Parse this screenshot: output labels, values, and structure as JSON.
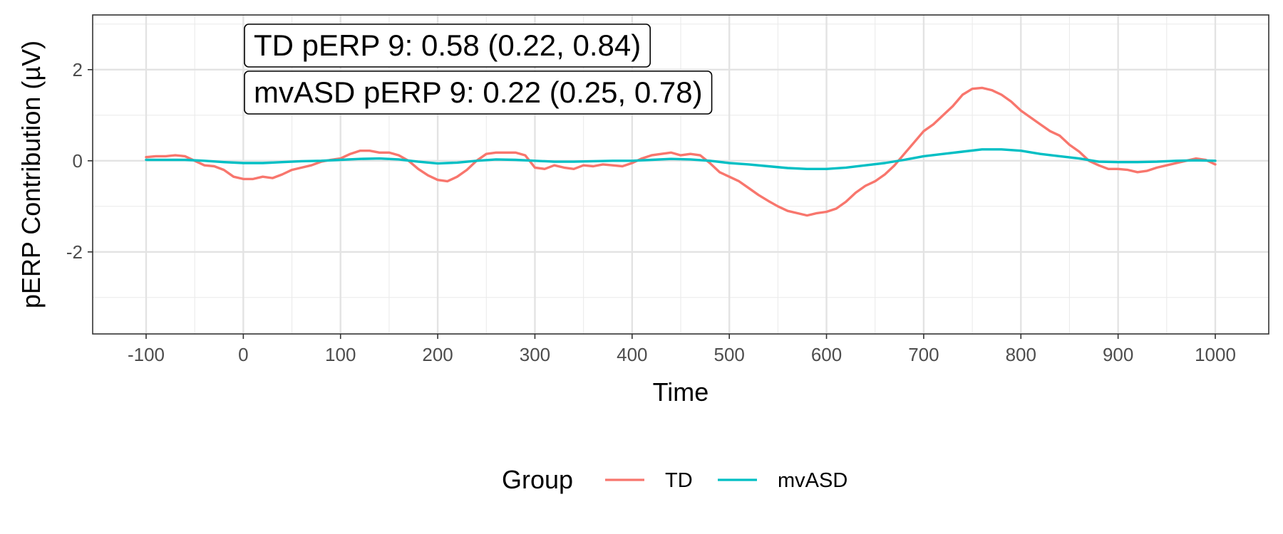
{
  "chart_data": {
    "type": "line",
    "title": "",
    "xlabel": "Time",
    "ylabel": "pERP Contribution (µV)",
    "xlim": [
      -155,
      1055
    ],
    "ylim": [
      -3.8,
      3.2
    ],
    "x_ticks": [
      -100,
      0,
      100,
      200,
      300,
      400,
      500,
      600,
      700,
      800,
      900,
      1000
    ],
    "x_tick_labels": [
      "-100",
      "0",
      "100",
      "200",
      "300",
      "400",
      "500",
      "600",
      "700",
      "800",
      "900",
      "1000"
    ],
    "y_ticks": [
      -2,
      0,
      2
    ],
    "y_tick_labels": [
      "-2",
      "0",
      "2"
    ],
    "grid": true,
    "legend": {
      "title": "Group",
      "position": "bottom"
    },
    "annotations": [
      "TD pERP 9: 0.58 (0.22, 0.84)",
      "mvASD pERP 9: 0.22 (0.25, 0.78)"
    ],
    "series": [
      {
        "name": "TD",
        "color": "#F8766D",
        "x": [
          -100,
          -90,
          -80,
          -70,
          -60,
          -50,
          -40,
          -30,
          -20,
          -10,
          0,
          10,
          20,
          30,
          40,
          50,
          60,
          70,
          80,
          90,
          100,
          110,
          120,
          130,
          140,
          150,
          160,
          170,
          180,
          190,
          200,
          210,
          220,
          230,
          240,
          250,
          260,
          270,
          280,
          290,
          300,
          310,
          320,
          330,
          340,
          350,
          360,
          370,
          380,
          390,
          400,
          410,
          420,
          430,
          440,
          450,
          460,
          470,
          480,
          490,
          500,
          510,
          520,
          530,
          540,
          550,
          560,
          570,
          580,
          590,
          600,
          610,
          620,
          630,
          640,
          650,
          660,
          670,
          680,
          690,
          700,
          710,
          720,
          730,
          740,
          750,
          760,
          770,
          780,
          790,
          800,
          810,
          820,
          830,
          840,
          850,
          860,
          870,
          880,
          890,
          900,
          910,
          920,
          930,
          940,
          950,
          960,
          970,
          980,
          990,
          1000
        ],
        "values": [
          0.08,
          0.1,
          0.1,
          0.12,
          0.1,
          0.0,
          -0.1,
          -0.12,
          -0.2,
          -0.35,
          -0.4,
          -0.4,
          -0.35,
          -0.38,
          -0.3,
          -0.2,
          -0.15,
          -0.1,
          -0.02,
          0.02,
          0.05,
          0.15,
          0.22,
          0.22,
          0.18,
          0.18,
          0.12,
          0.0,
          -0.18,
          -0.32,
          -0.42,
          -0.45,
          -0.35,
          -0.2,
          0.0,
          0.15,
          0.18,
          0.18,
          0.18,
          0.12,
          -0.15,
          -0.18,
          -0.1,
          -0.15,
          -0.18,
          -0.1,
          -0.12,
          -0.08,
          -0.1,
          -0.12,
          -0.05,
          0.05,
          0.12,
          0.15,
          0.18,
          0.12,
          0.15,
          0.12,
          -0.05,
          -0.25,
          -0.35,
          -0.45,
          -0.6,
          -0.75,
          -0.88,
          -1.0,
          -1.1,
          -1.15,
          -1.2,
          -1.15,
          -1.12,
          -1.05,
          -0.9,
          -0.7,
          -0.55,
          -0.45,
          -0.3,
          -0.1,
          0.15,
          0.4,
          0.65,
          0.8,
          1.0,
          1.2,
          1.45,
          1.58,
          1.6,
          1.55,
          1.45,
          1.3,
          1.1,
          0.95,
          0.8,
          0.65,
          0.55,
          0.35,
          0.2,
          0.0,
          -0.1,
          -0.18,
          -0.18,
          -0.2,
          -0.25,
          -0.22,
          -0.15,
          -0.1,
          -0.05,
          0.0,
          0.05,
          0.02,
          -0.08
        ]
      },
      {
        "name": "mvASD",
        "color": "#00BFC4",
        "x": [
          -100,
          -80,
          -60,
          -40,
          -20,
          0,
          20,
          40,
          60,
          80,
          100,
          120,
          140,
          160,
          180,
          200,
          220,
          240,
          260,
          280,
          300,
          320,
          340,
          360,
          380,
          400,
          420,
          440,
          460,
          480,
          500,
          520,
          540,
          560,
          580,
          600,
          620,
          640,
          660,
          680,
          700,
          720,
          740,
          760,
          780,
          800,
          820,
          840,
          860,
          880,
          900,
          920,
          940,
          960,
          980,
          1000
        ],
        "values": [
          0.02,
          0.02,
          0.02,
          0.0,
          -0.03,
          -0.05,
          -0.05,
          -0.03,
          -0.01,
          0.0,
          0.02,
          0.04,
          0.05,
          0.03,
          -0.02,
          -0.06,
          -0.04,
          0.0,
          0.03,
          0.02,
          0.0,
          -0.02,
          -0.02,
          -0.01,
          0.0,
          0.0,
          0.02,
          0.04,
          0.03,
          0.0,
          -0.05,
          -0.08,
          -0.12,
          -0.16,
          -0.18,
          -0.18,
          -0.15,
          -0.1,
          -0.05,
          0.02,
          0.1,
          0.15,
          0.2,
          0.25,
          0.25,
          0.22,
          0.15,
          0.1,
          0.05,
          -0.02,
          -0.03,
          -0.03,
          -0.02,
          0.0,
          0.01,
          0.0
        ]
      }
    ]
  }
}
